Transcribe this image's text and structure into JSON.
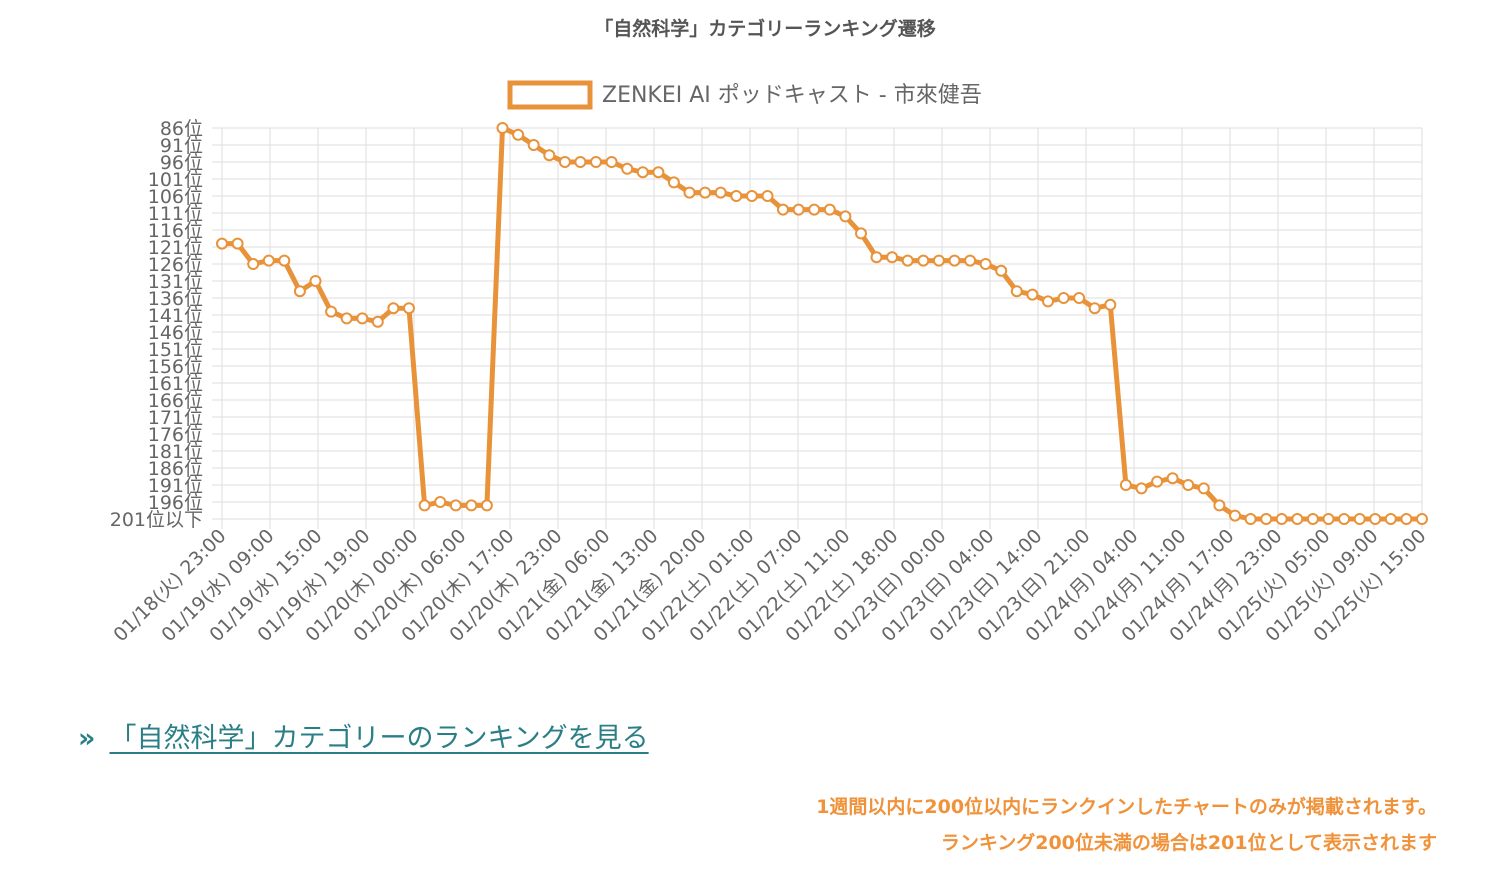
{
  "colors": {
    "series": "#E8923A",
    "link": "#2a7f86",
    "note": "#f0923a"
  },
  "link": {
    "arrow": "»",
    "text": "「自然科学」カテゴリーのランキングを見る"
  },
  "notes": [
    "1週間以内に200位以内にランクインしたチャートのみが掲載されます。",
    "ランキング200位未満の場合は201位として表示されます"
  ],
  "chart_data": {
    "type": "line",
    "title": "「自然科学」カテゴリーランキング遷移",
    "legend": {
      "position": "top",
      "label": "ZENKEI AI ポッドキャスト - 市來健吾"
    },
    "y_reversed": true,
    "ylim": [
      86,
      201
    ],
    "y_ticks": [
      "86位",
      "91位",
      "96位",
      "101位",
      "106位",
      "111位",
      "116位",
      "121位",
      "126位",
      "131位",
      "136位",
      "141位",
      "146位",
      "151位",
      "156位",
      "161位",
      "166位",
      "171位",
      "176位",
      "181位",
      "186位",
      "191位",
      "196位",
      "201位以下"
    ],
    "x_tick_labels": [
      "01/18(火) 23:00",
      "01/19(水) 09:00",
      "01/19(水) 15:00",
      "01/19(水) 19:00",
      "01/20(木) 00:00",
      "01/20(木) 06:00",
      "01/20(木) 17:00",
      "01/20(木) 23:00",
      "01/21(金) 06:00",
      "01/21(金) 13:00",
      "01/21(金) 20:00",
      "01/22(土) 01:00",
      "01/22(土) 07:00",
      "01/22(土) 11:00",
      "01/22(土) 18:00",
      "01/23(日) 00:00",
      "01/23(日) 04:00",
      "01/23(日) 14:00",
      "01/23(日) 21:00",
      "01/24(月) 04:00",
      "01/24(月) 11:00",
      "01/24(月) 17:00",
      "01/24(月) 23:00",
      "01/25(火) 05:00",
      "01/25(火) 09:00",
      "01/25(火) 15:00"
    ],
    "grid": true,
    "series": [
      {
        "name": "ZENKEI AI ポッドキャスト - 市來健吾",
        "values": [
          120,
          120,
          126,
          125,
          125,
          134,
          131,
          140,
          142,
          142,
          143,
          139,
          139,
          197,
          196,
          197,
          197,
          197,
          86,
          88,
          91,
          94,
          96,
          96,
          96,
          96,
          98,
          99,
          99,
          102,
          105,
          105,
          105,
          106,
          106,
          106,
          110,
          110,
          110,
          110,
          112,
          117,
          124,
          124,
          125,
          125,
          125,
          125,
          125,
          126,
          128,
          134,
          135,
          137,
          136,
          136,
          139,
          138,
          191,
          192,
          190,
          189,
          191,
          192,
          197,
          200,
          201,
          201,
          201,
          201,
          201,
          201,
          201,
          201,
          201,
          201,
          201,
          201
        ]
      }
    ]
  }
}
